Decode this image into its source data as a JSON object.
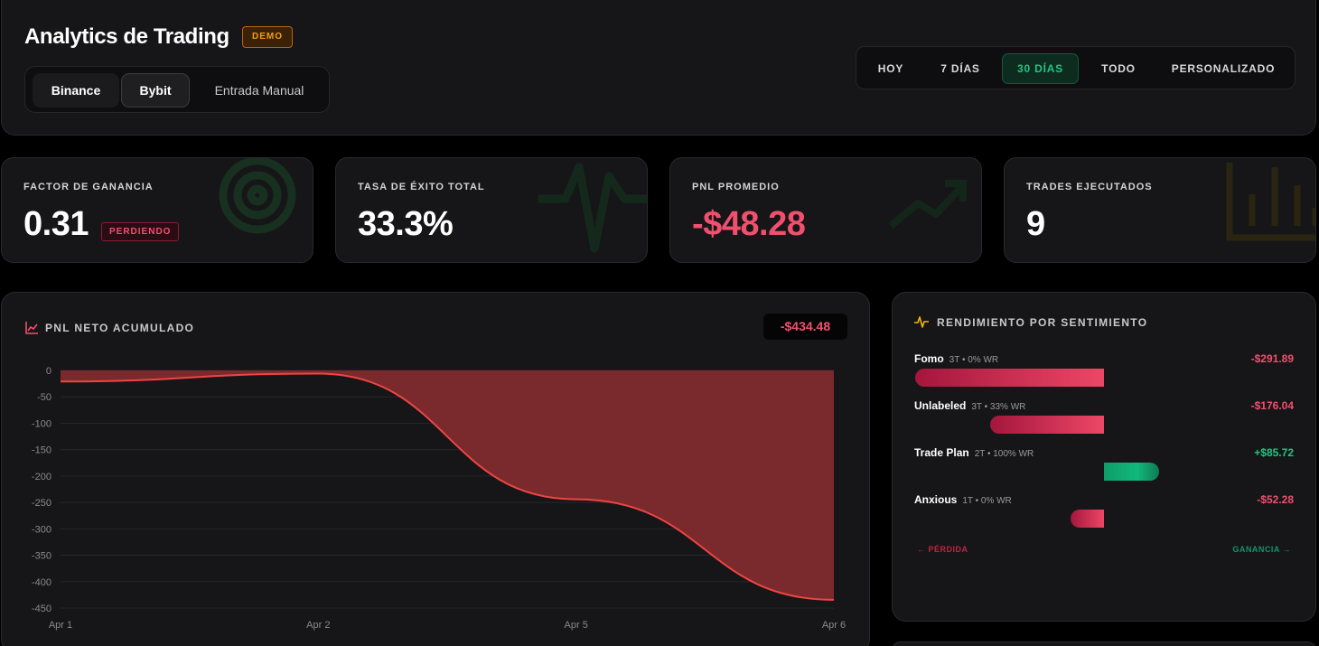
{
  "header": {
    "title": "Analytics de Trading",
    "badge": "DEMO",
    "sources": [
      "Binance",
      "Bybit",
      "Entrada Manual"
    ],
    "selected_source": "Bybit",
    "ranges": [
      "HOY",
      "7 DÍAS",
      "30 DÍAS",
      "TODO",
      "PERSONALIZADO"
    ],
    "selected_range": "30 DÍAS"
  },
  "stats": [
    {
      "label": "FACTOR DE GANANCIA",
      "value": "0.31",
      "badge": "PERDIENDO",
      "icon": "target-icon"
    },
    {
      "label": "TASA DE ÉXITO TOTAL",
      "value": "33.3%",
      "icon": "pulse-icon"
    },
    {
      "label": "PNL PROMEDIO",
      "value": "-$48.28",
      "icon": "trend-up-icon"
    },
    {
      "label": "TRADES EJECUTADOS",
      "value": "9",
      "icon": "bar-chart-icon"
    }
  ],
  "pnl": {
    "title": "PNL NETO ACUMULADO",
    "total": "-$434.48",
    "icon": "line-chart-icon"
  },
  "chart_data": {
    "type": "area",
    "title": "PNL NETO ACUMULADO",
    "x": [
      "Apr 1",
      "Apr 2",
      "Apr 5",
      "Apr 6"
    ],
    "xlabels": [
      "Apr 1",
      "Apr 2",
      "Apr 5",
      "Apr 6"
    ],
    "series": [
      {
        "values": [
          -21,
          -6,
          -244,
          -434.48
        ]
      }
    ],
    "ylim": [
      -450,
      0
    ],
    "yticks": [
      0,
      -50,
      -100,
      -150,
      -200,
      -250,
      -300,
      -350,
      -400,
      -450
    ],
    "grid": true,
    "colors": {
      "line": "#ef4444",
      "fill": "#7a2a2c"
    }
  },
  "sentiment": {
    "title": "RENDIMIENTO POR SENTIMIENTO",
    "icon": "activity-icon",
    "items": [
      {
        "name": "Fomo",
        "meta": "3T • 0% WR",
        "value": "-$291.89",
        "amount": -291.89
      },
      {
        "name": "Unlabeled",
        "meta": "3T • 33% WR",
        "value": "-$176.04",
        "amount": -176.04
      },
      {
        "name": "Trade Plan",
        "meta": "2T • 100% WR",
        "value": "+$85.72",
        "amount": 85.72
      },
      {
        "name": "Anxious",
        "meta": "1T • 0% WR",
        "value": "-$52.28",
        "amount": -52.28
      }
    ],
    "loss_label": "← PÉRDIDA",
    "gain_label": "GANANCIA →"
  },
  "colors": {
    "negative": "#f0506e",
    "positive": "#22c583",
    "accent_warn": "#f59e0b"
  }
}
